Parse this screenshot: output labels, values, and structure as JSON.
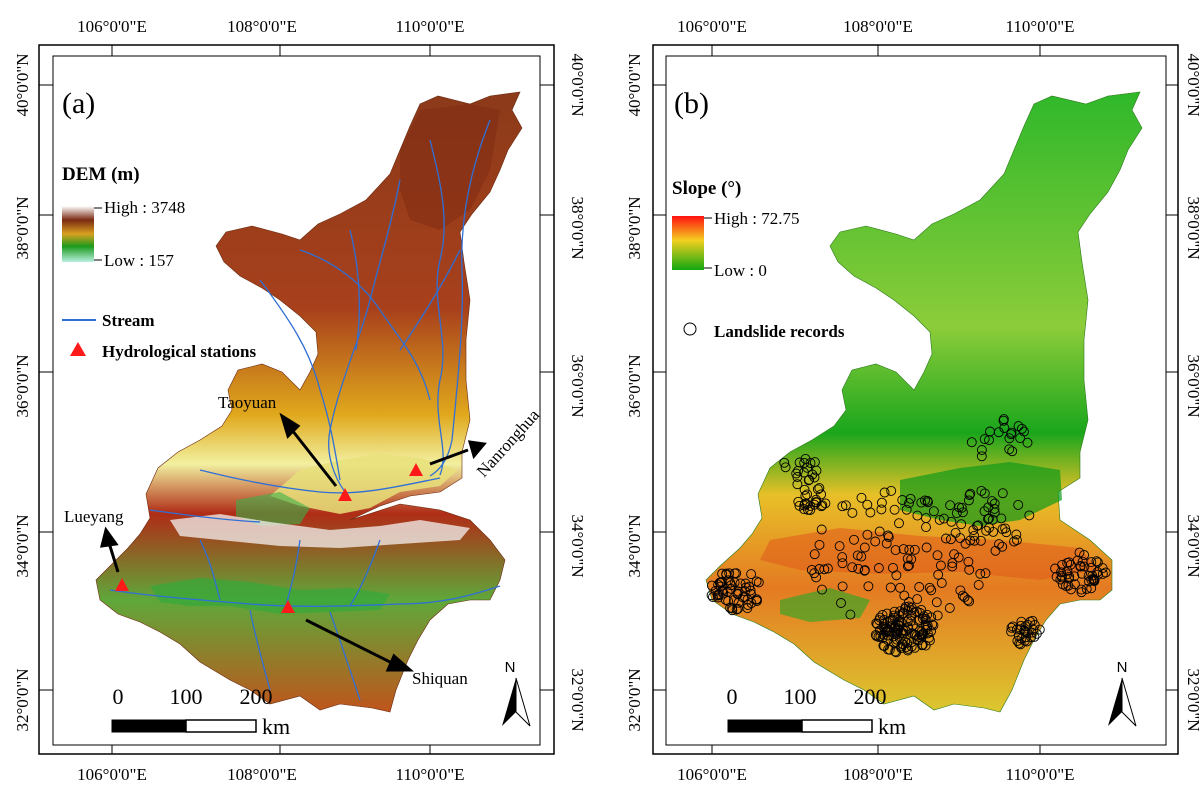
{
  "panels": [
    {
      "id": "a",
      "label": "(a)",
      "lon_ticks": [
        "106°0'0\"E",
        "108°0'0\"E",
        "110°0'0\"E"
      ],
      "lat_ticks": [
        "40°0'0\"N",
        "38°0'0\"N",
        "36°0'0\"N",
        "34°0'0\"N",
        "32°0'0\"N"
      ],
      "legend": {
        "title": "DEM (m)",
        "high": "High : 3748",
        "low": "Low : 157",
        "stream": "Stream",
        "stations": "Hydrological stations"
      },
      "stations": [
        "Taoyuan",
        "Nanronghua",
        "Lueyang",
        "Shiquan"
      ],
      "scalebar": {
        "ticks": [
          "0",
          "100",
          "200"
        ],
        "unit": "km"
      },
      "north": "N"
    },
    {
      "id": "b",
      "label": "(b)",
      "lon_ticks": [
        "106°0'0\"E",
        "108°0'0\"E",
        "110°0'0\"E"
      ],
      "lat_ticks": [
        "40°0'0\"N",
        "38°0'0\"N",
        "36°0'0\"N",
        "34°0'0\"N",
        "32°0'0\"N"
      ],
      "legend": {
        "title": "Slope (°)",
        "high": "High : 72.75",
        "low": "Low : 0",
        "landslides": "Landslide records"
      },
      "scalebar": {
        "ticks": [
          "0",
          "100",
          "200"
        ],
        "unit": "km"
      },
      "north": "N"
    }
  ],
  "colors": {
    "dem_high": "#8b2a12",
    "dem_mid": "#e8c21a",
    "dem_low": "#a6ecd6",
    "stream": "#2f6fd6",
    "station": "#ff1a1a",
    "slope_high": "#e32b12",
    "slope_mid": "#f0d020",
    "slope_low": "#1aa81a"
  }
}
